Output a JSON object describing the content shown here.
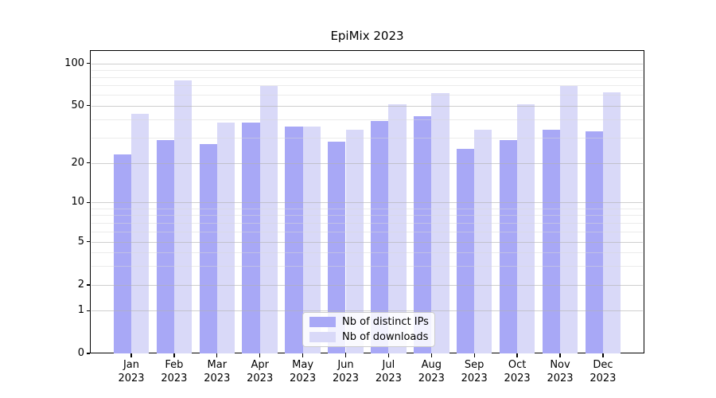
{
  "title": "EpiMix 2023",
  "chart_data": {
    "type": "bar",
    "title": "EpiMix 2023",
    "categories": [
      {
        "month": "Jan",
        "year": "2023"
      },
      {
        "month": "Feb",
        "year": "2023"
      },
      {
        "month": "Mar",
        "year": "2023"
      },
      {
        "month": "Apr",
        "year": "2023"
      },
      {
        "month": "May",
        "year": "2023"
      },
      {
        "month": "Jun",
        "year": "2023"
      },
      {
        "month": "Jul",
        "year": "2023"
      },
      {
        "month": "Aug",
        "year": "2023"
      },
      {
        "month": "Sep",
        "year": "2023"
      },
      {
        "month": "Oct",
        "year": "2023"
      },
      {
        "month": "Nov",
        "year": "2023"
      },
      {
        "month": "Dec",
        "year": "2023"
      }
    ],
    "series": [
      {
        "name": "Nb of distinct IPs",
        "color": "#a8a8f6",
        "values": [
          23,
          29,
          27,
          38,
          36,
          28,
          39,
          42,
          25,
          29,
          34,
          33
        ]
      },
      {
        "name": "Nb of downloads",
        "color": "#d9d9f8",
        "values": [
          44,
          76,
          38,
          69,
          36,
          34,
          51,
          61,
          34,
          51,
          69,
          62
        ]
      }
    ],
    "xlabel": "",
    "ylabel": "",
    "yscale": "symlog",
    "yticks": [
      0,
      1,
      2,
      5,
      10,
      20,
      50,
      100
    ],
    "yticks_minor": [
      3,
      4,
      6,
      7,
      8,
      9,
      30,
      40,
      60,
      70,
      80,
      90
    ],
    "ylim": [
      0,
      125
    ],
    "grid": "horizontal major and minor gridlines, drawn over bars",
    "legend_position": "lower center"
  }
}
